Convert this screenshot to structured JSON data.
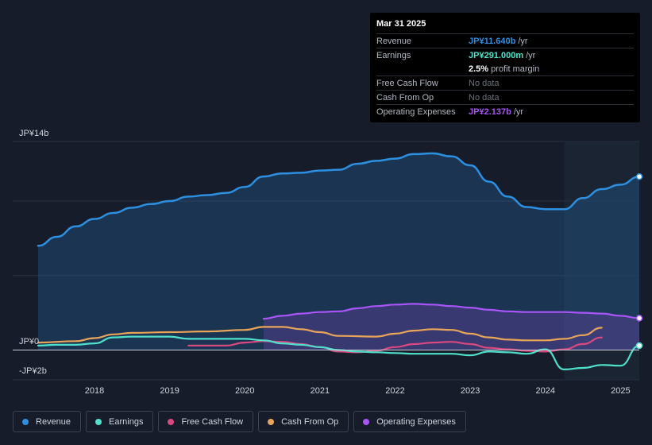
{
  "tooltip": {
    "date": "Mar 31 2025",
    "rows": [
      {
        "label": "Revenue",
        "value": "JP¥11.640b",
        "unit": "/yr",
        "color": "#2d8fe0"
      },
      {
        "label": "Earnings",
        "value": "JP¥291.000m",
        "unit": "/yr",
        "color": "#4fe0cc"
      },
      {
        "label": "",
        "value": "2.5%",
        "unit": "profit margin",
        "color": "#ffffff"
      },
      {
        "label": "Free Cash Flow",
        "value": "No data",
        "unit": "",
        "color": "#6b707a"
      },
      {
        "label": "Cash From Op",
        "value": "No data",
        "unit": "",
        "color": "#6b707a"
      },
      {
        "label": "Operating Expenses",
        "value": "JP¥2.137b",
        "unit": "/yr",
        "color": "#a855f7"
      }
    ]
  },
  "legend": [
    {
      "label": "Revenue",
      "color": "#2d8fe0"
    },
    {
      "label": "Earnings",
      "color": "#4fe0cc"
    },
    {
      "label": "Free Cash Flow",
      "color": "#d9487e"
    },
    {
      "label": "Cash From Op",
      "color": "#e8a55a"
    },
    {
      "label": "Operating Expenses",
      "color": "#a855f7"
    }
  ],
  "chart_data": {
    "type": "area",
    "y_top_label": "JP¥14b",
    "y_zero_label": "JP¥0",
    "y_bottom_label": "-JP¥2b",
    "ylim": [
      -2,
      14
    ],
    "xlim": [
      2017.25,
      2025.25
    ],
    "x_ticks": [
      "2018",
      "2019",
      "2020",
      "2021",
      "2022",
      "2023",
      "2024",
      "2025"
    ],
    "forecast_start": 2024.25,
    "series": [
      {
        "name": "Revenue",
        "color": "#2d8fe0",
        "fill": true,
        "points": [
          [
            2017.25,
            7.0
          ],
          [
            2017.5,
            7.6
          ],
          [
            2017.75,
            8.3
          ],
          [
            2018.0,
            8.8
          ],
          [
            2018.25,
            9.2
          ],
          [
            2018.5,
            9.55
          ],
          [
            2018.75,
            9.8
          ],
          [
            2019.0,
            10.0
          ],
          [
            2019.25,
            10.3
          ],
          [
            2019.5,
            10.4
          ],
          [
            2019.75,
            10.55
          ],
          [
            2020.0,
            10.95
          ],
          [
            2020.25,
            11.65
          ],
          [
            2020.5,
            11.85
          ],
          [
            2020.75,
            11.9
          ],
          [
            2021.0,
            12.05
          ],
          [
            2021.25,
            12.1
          ],
          [
            2021.5,
            12.5
          ],
          [
            2021.75,
            12.7
          ],
          [
            2022.0,
            12.85
          ],
          [
            2022.25,
            13.15
          ],
          [
            2022.5,
            13.2
          ],
          [
            2022.75,
            13.0
          ],
          [
            2023.0,
            12.4
          ],
          [
            2023.25,
            11.3
          ],
          [
            2023.5,
            10.3
          ],
          [
            2023.75,
            9.6
          ],
          [
            2024.0,
            9.45
          ],
          [
            2024.25,
            9.45
          ],
          [
            2024.5,
            10.2
          ],
          [
            2024.75,
            10.8
          ],
          [
            2025.0,
            11.1
          ],
          [
            2025.25,
            11.64
          ]
        ]
      },
      {
        "name": "Operating Expenses",
        "color": "#a855f7",
        "fill": true,
        "points": [
          [
            2020.25,
            2.1
          ],
          [
            2020.5,
            2.3
          ],
          [
            2020.75,
            2.45
          ],
          [
            2021.0,
            2.55
          ],
          [
            2021.25,
            2.6
          ],
          [
            2021.5,
            2.8
          ],
          [
            2021.75,
            2.95
          ],
          [
            2022.0,
            3.05
          ],
          [
            2022.25,
            3.1
          ],
          [
            2022.5,
            3.05
          ],
          [
            2022.75,
            2.95
          ],
          [
            2023.0,
            2.85
          ],
          [
            2023.25,
            2.7
          ],
          [
            2023.5,
            2.6
          ],
          [
            2023.75,
            2.55
          ],
          [
            2024.0,
            2.55
          ],
          [
            2024.25,
            2.55
          ],
          [
            2024.5,
            2.5
          ],
          [
            2024.75,
            2.45
          ],
          [
            2025.0,
            2.3
          ],
          [
            2025.25,
            2.137
          ]
        ]
      },
      {
        "name": "Cash From Op",
        "color": "#e8a55a",
        "fill": false,
        "points": [
          [
            2017.25,
            0.5
          ],
          [
            2017.75,
            0.6
          ],
          [
            2018.0,
            0.8
          ],
          [
            2018.25,
            1.05
          ],
          [
            2018.5,
            1.15
          ],
          [
            2019.0,
            1.2
          ],
          [
            2019.5,
            1.25
          ],
          [
            2020.0,
            1.35
          ],
          [
            2020.25,
            1.55
          ],
          [
            2020.5,
            1.55
          ],
          [
            2020.75,
            1.4
          ],
          [
            2021.0,
            1.2
          ],
          [
            2021.25,
            0.95
          ],
          [
            2021.75,
            0.9
          ],
          [
            2022.0,
            1.1
          ],
          [
            2022.25,
            1.3
          ],
          [
            2022.5,
            1.4
          ],
          [
            2022.75,
            1.35
          ],
          [
            2023.0,
            1.1
          ],
          [
            2023.25,
            0.85
          ],
          [
            2023.5,
            0.7
          ],
          [
            2023.75,
            0.65
          ],
          [
            2024.0,
            0.65
          ],
          [
            2024.25,
            0.75
          ],
          [
            2024.5,
            1.0
          ],
          [
            2024.75,
            1.5
          ]
        ]
      },
      {
        "name": "Free Cash Flow",
        "color": "#d9487e",
        "fill": false,
        "points": [
          [
            2019.25,
            0.3
          ],
          [
            2019.5,
            0.3
          ],
          [
            2019.75,
            0.3
          ],
          [
            2020.0,
            0.5
          ],
          [
            2020.25,
            0.6
          ],
          [
            2020.5,
            0.55
          ],
          [
            2020.75,
            0.4
          ],
          [
            2021.0,
            0.2
          ],
          [
            2021.25,
            -0.1
          ],
          [
            2021.5,
            -0.15
          ],
          [
            2021.75,
            -0.05
          ],
          [
            2022.0,
            0.2
          ],
          [
            2022.25,
            0.4
          ],
          [
            2022.5,
            0.5
          ],
          [
            2022.75,
            0.55
          ],
          [
            2023.0,
            0.4
          ],
          [
            2023.25,
            0.15
          ],
          [
            2023.5,
            0.05
          ],
          [
            2023.75,
            -0.05
          ],
          [
            2024.0,
            -0.1
          ],
          [
            2024.25,
            0.05
          ],
          [
            2024.5,
            0.4
          ],
          [
            2024.75,
            0.85
          ]
        ]
      },
      {
        "name": "Earnings",
        "color": "#4fe0cc",
        "fill": false,
        "points": [
          [
            2017.25,
            0.3
          ],
          [
            2017.5,
            0.35
          ],
          [
            2017.75,
            0.35
          ],
          [
            2018.0,
            0.45
          ],
          [
            2018.25,
            0.85
          ],
          [
            2018.5,
            0.9
          ],
          [
            2019.0,
            0.9
          ],
          [
            2019.25,
            0.75
          ],
          [
            2019.5,
            0.75
          ],
          [
            2020.0,
            0.75
          ],
          [
            2020.25,
            0.65
          ],
          [
            2020.5,
            0.45
          ],
          [
            2020.75,
            0.35
          ],
          [
            2021.0,
            0.2
          ],
          [
            2021.25,
            0.0
          ],
          [
            2021.5,
            -0.1
          ],
          [
            2021.75,
            -0.15
          ],
          [
            2022.0,
            -0.2
          ],
          [
            2022.25,
            -0.25
          ],
          [
            2022.5,
            -0.25
          ],
          [
            2022.75,
            -0.25
          ],
          [
            2023.0,
            -0.35
          ],
          [
            2023.25,
            -0.1
          ],
          [
            2023.5,
            -0.15
          ],
          [
            2023.75,
            -0.25
          ],
          [
            2024.0,
            0.05
          ],
          [
            2024.25,
            -1.3
          ],
          [
            2024.5,
            -1.2
          ],
          [
            2024.75,
            -1.0
          ],
          [
            2025.0,
            -1.05
          ],
          [
            2025.25,
            0.291
          ]
        ]
      }
    ]
  }
}
